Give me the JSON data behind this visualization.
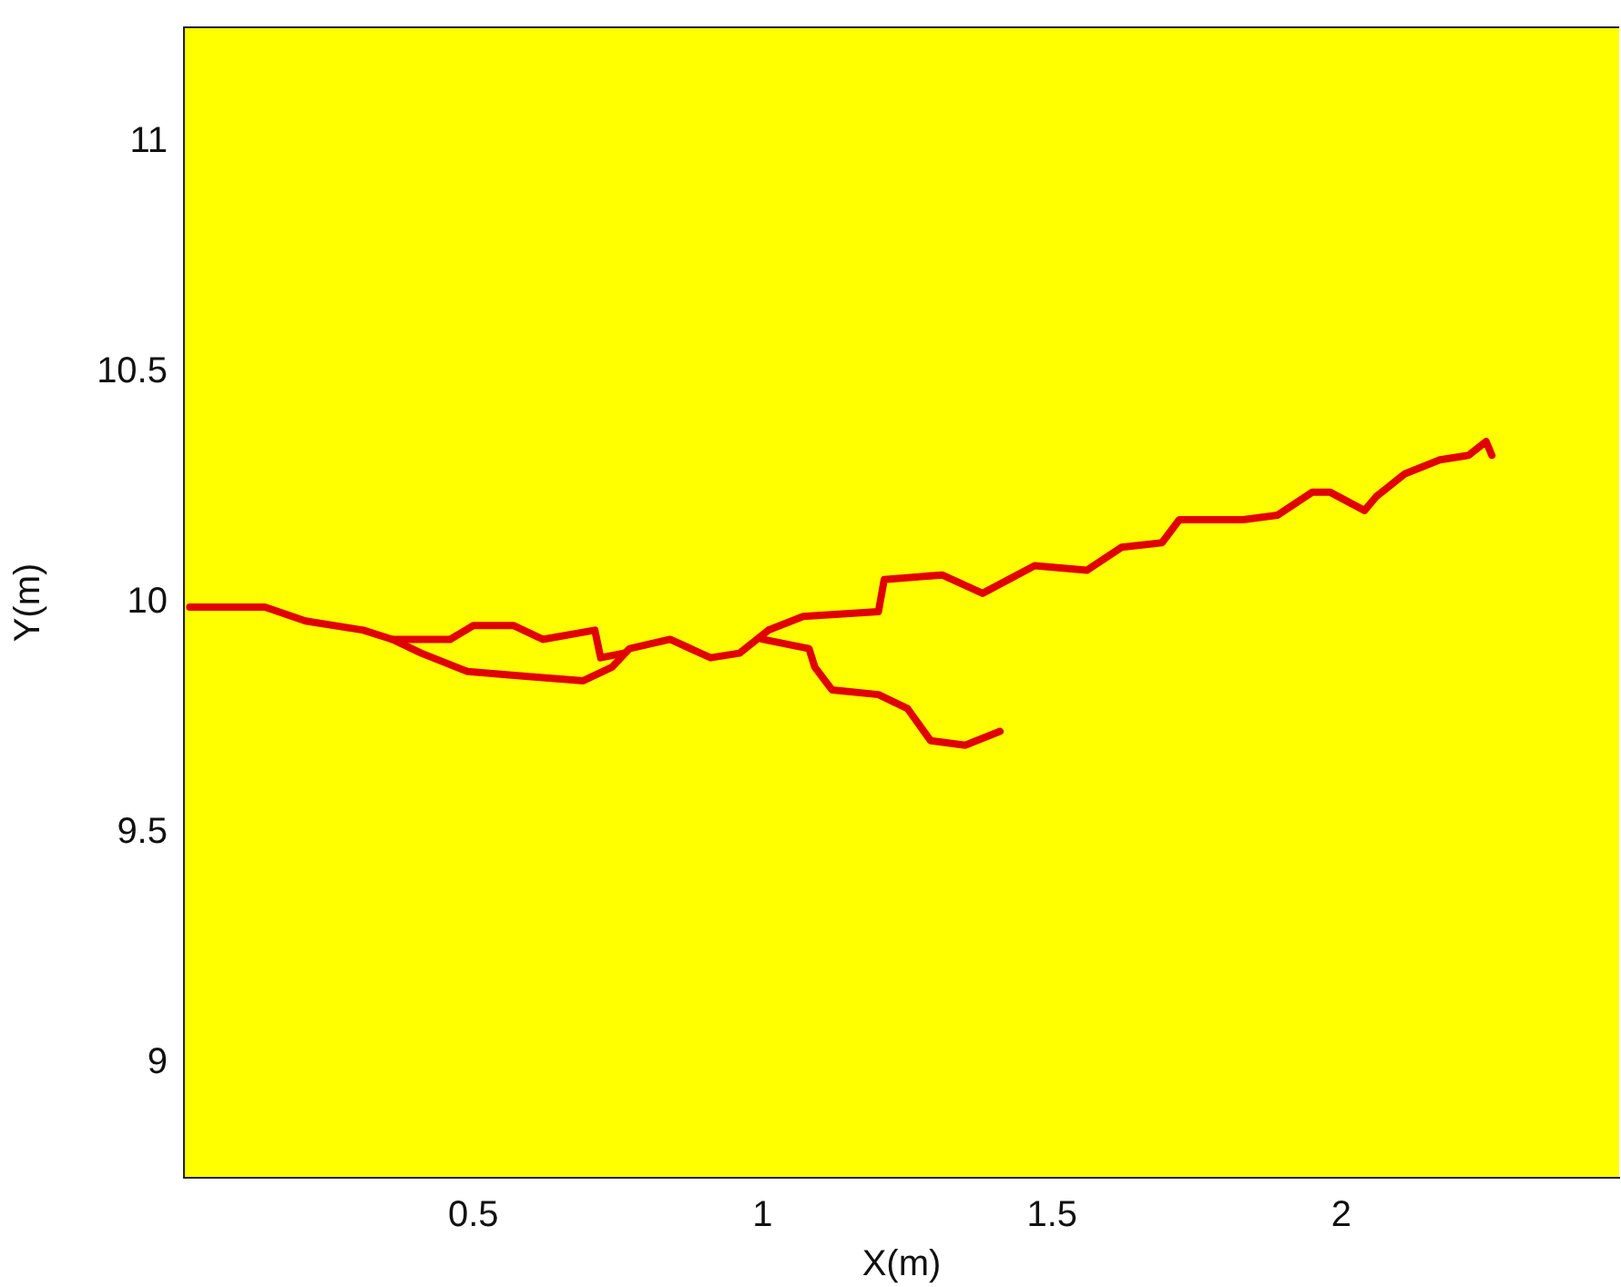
{
  "chart_data": {
    "type": "line",
    "xlabel": "X(m)",
    "ylabel": "Y(m)",
    "xlim": [
      0,
      2.48
    ],
    "ylim": [
      8.75,
      11.25
    ],
    "xticks": [
      0.5,
      1,
      1.5,
      2
    ],
    "yticks": [
      9,
      9.5,
      10,
      10.5,
      11
    ],
    "grid": false,
    "legend": false,
    "marker": "none",
    "line_style": "solid",
    "series": [
      {
        "color": "#e00000",
        "x": [
          0.01,
          0.14,
          0.21,
          0.31,
          0.36,
          0.41,
          0.49,
          0.59,
          0.69,
          0.74,
          0.77,
          0.84,
          0.91,
          0.96,
          1.01,
          1.07,
          1.2,
          1.21,
          1.31,
          1.38,
          1.47,
          1.56,
          1.62,
          1.69,
          1.72,
          1.83,
          1.89,
          1.95,
          1.98,
          2.04,
          2.06,
          2.11,
          2.17,
          2.22,
          2.25,
          2.26
        ],
        "values": [
          9.99,
          9.99,
          9.96,
          9.94,
          9.92,
          9.89,
          9.85,
          9.84,
          9.83,
          9.86,
          9.9,
          9.92,
          9.88,
          9.89,
          9.94,
          9.97,
          9.98,
          10.05,
          10.06,
          10.02,
          10.08,
          10.07,
          10.12,
          10.13,
          10.18,
          10.18,
          10.19,
          10.24,
          10.24,
          10.2,
          10.23,
          10.28,
          10.31,
          10.32,
          10.35,
          10.32
        ]
      },
      {
        "color": "#e00000",
        "x": [
          0.36,
          0.46,
          0.5,
          0.57,
          0.62,
          0.71,
          0.72,
          0.76
        ],
        "values": [
          9.92,
          9.92,
          9.95,
          9.95,
          9.92,
          9.94,
          9.88,
          9.89
        ]
      },
      {
        "color": "#e00000",
        "x": [
          1.0,
          1.08,
          1.09,
          1.12,
          1.2,
          1.25,
          1.29,
          1.35,
          1.41
        ],
        "values": [
          9.92,
          9.9,
          9.86,
          9.81,
          9.8,
          9.77,
          9.7,
          9.69,
          9.72
        ]
      }
    ]
  }
}
